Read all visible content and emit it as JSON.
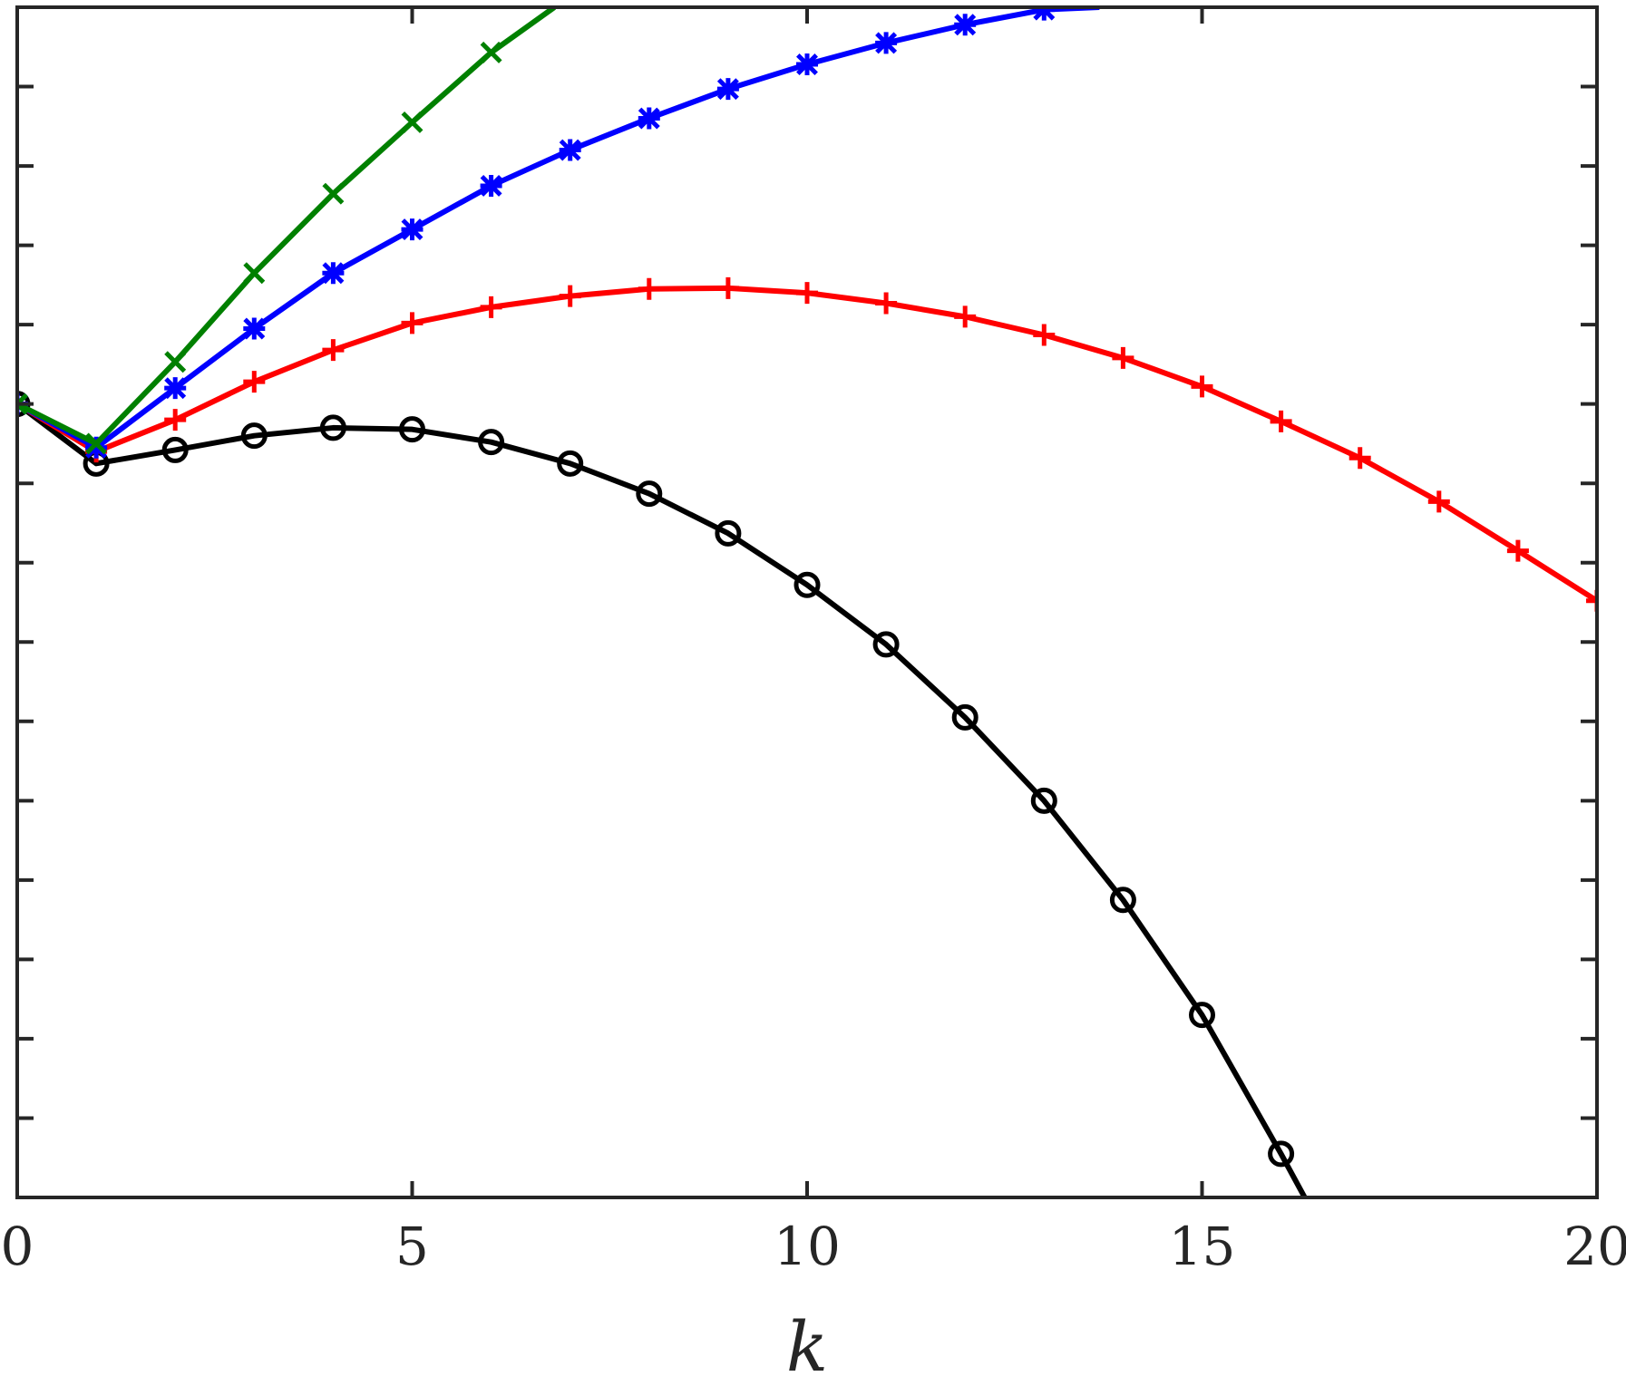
{
  "chart_data": {
    "type": "line",
    "xlabel": "k",
    "ylabel": "",
    "xlim": [
      0,
      20
    ],
    "ylim": [
      -10,
      5
    ],
    "xticks": [
      0,
      5,
      10,
      15,
      20
    ],
    "xtick_labels": [
      "0",
      "5",
      "10",
      "15",
      "20"
    ],
    "yticks": [
      -10,
      -9,
      -8,
      -7,
      -6,
      -5,
      -4,
      -3,
      -2,
      -1,
      0,
      1,
      2,
      3,
      4,
      5
    ],
    "ytick_labels_shown": false,
    "grid": false,
    "legend": "none",
    "series": [
      {
        "color": "#000000",
        "marker": "circle",
        "x": [
          0,
          1,
          2,
          3,
          4,
          5,
          6,
          7,
          8,
          9,
          10,
          11,
          12,
          13,
          14,
          15,
          16,
          16.3
        ],
        "y": [
          0,
          -0.75,
          -0.58,
          -0.4,
          -0.3,
          -0.32,
          -0.48,
          -0.75,
          -1.13,
          -1.63,
          -2.28,
          -3.03,
          -3.95,
          -5.0,
          -6.25,
          -7.7,
          -9.45,
          -10.0
        ]
      },
      {
        "color": "#ff0000",
        "marker": "plus",
        "x": [
          0,
          1,
          2,
          3,
          4,
          5,
          6,
          7,
          8,
          9,
          10,
          11,
          12,
          13,
          14,
          15,
          16,
          17,
          18,
          19,
          20
        ],
        "y": [
          0,
          -0.6,
          -0.2,
          0.28,
          0.68,
          1.02,
          1.22,
          1.36,
          1.45,
          1.46,
          1.4,
          1.27,
          1.1,
          0.87,
          0.58,
          0.22,
          -0.22,
          -0.68,
          -1.23,
          -1.85,
          -2.48
        ]
      },
      {
        "color": "#0000ff",
        "marker": "asterisk",
        "x": [
          0,
          1,
          2,
          3,
          4,
          5,
          6,
          7,
          8,
          9,
          10,
          11,
          12,
          13,
          13.7
        ],
        "y": [
          0,
          -0.55,
          0.2,
          0.95,
          1.65,
          2.2,
          2.75,
          3.2,
          3.6,
          3.97,
          4.28,
          4.55,
          4.78,
          4.97,
          5.0
        ]
      },
      {
        "color": "#008000",
        "marker": "x",
        "x": [
          0,
          1,
          2,
          3,
          4,
          5,
          6,
          6.8
        ],
        "y": [
          0,
          -0.5,
          0.53,
          1.65,
          2.65,
          3.55,
          4.43,
          5.0
        ]
      }
    ]
  }
}
